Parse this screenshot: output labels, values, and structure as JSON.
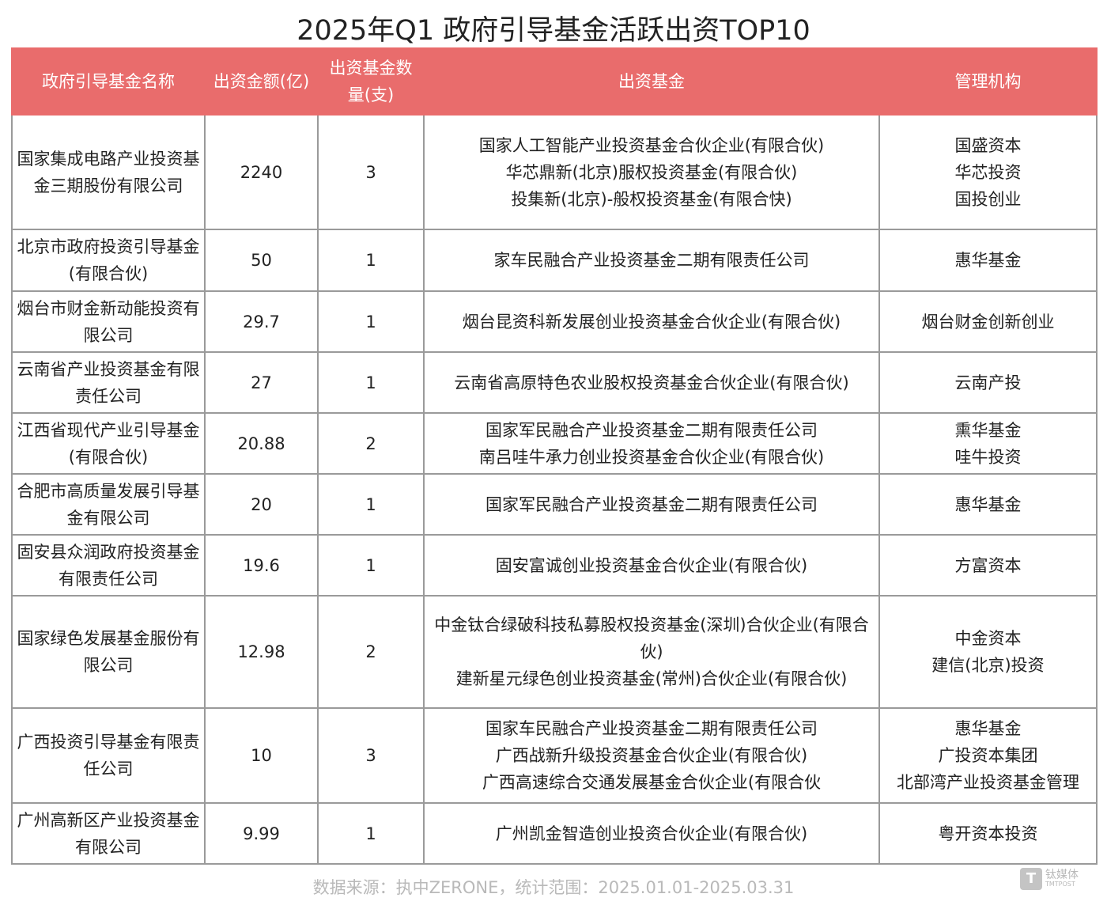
{
  "title": "2025年Q1 政府引导基金活跃出资TOP10",
  "table": {
    "header": [
      "政府引导基金名称",
      "出资金额(亿)",
      "出资基金数量(支)",
      "出资基金",
      "管理机构"
    ],
    "rows": [
      [
        "国家集成电路产业投资基金三期股份有限公司",
        2240,
        3,
        [
          "国家人工智能产业投资基金合伙企业(有限合伙)",
          "华芯鼎新(北京)服权投资基金(有限合伙)",
          "投集新(北京)-般权投资基金(有限合快)"
        ],
        [
          "国盛资本",
          "华芯投资",
          "国投创业"
        ]
      ],
      [
        "北京市政府投资引导基金(有限合伙)",
        50,
        1,
        [
          "家车民融合产业投资基金二期有限责任公司"
        ],
        [
          "惠华基金"
        ]
      ],
      [
        "烟台市财金新动能投资有限公司",
        29.7,
        1,
        [
          "烟台昆资科新发展创业投资基金合伙企业(有限合伙)"
        ],
        [
          "烟台财金创新创业"
        ]
      ],
      [
        "云南省产业投资基金有限责任公司",
        27,
        1,
        [
          "云南省高原特色农业股权投资基金合伙企业(有限合伙)"
        ],
        [
          "云南产投"
        ]
      ],
      [
        "江西省现代产业引导基金(有限合伙)",
        20.88,
        2,
        [
          "国家军民融合产业投资基金二期有限责任公司",
          "南吕哇牛承力创业投资基金合伙企业(有限合伙)"
        ],
        [
          "熏华基金",
          "哇牛投资"
        ]
      ],
      [
        "合肥市高质量发展引导基金有限公司",
        20,
        1,
        [
          "国家军民融合产业投资基金二期有限责任公司"
        ],
        [
          "惠华基金"
        ]
      ],
      [
        "固安县众润政府投资基金有限责任公司",
        19.6,
        1,
        [
          "固安富诚创业投资基金合伙企业(有限合伙)"
        ],
        [
          "方富资本"
        ]
      ],
      [
        "国家绿色发展基金服份有限公司",
        12.98,
        2,
        [
          "中金钛合绿破科技私募股权投资基金(深圳)合伙企业(有限合伙)",
          "建新星元绿色创业投资基金(常州)合伙企业(有限合伙)"
        ],
        [
          "中金资本",
          "建信(北京)投资"
        ]
      ],
      [
        "广西投资引导基金有限责任公司",
        10,
        3,
        [
          "国家车民融合产业投资基金二期有限责任公司",
          "广西战新升级投资基金合伙企业(有限合伙)",
          "广西高速综合交通发展基金合伙企业(有限合伙"
        ],
        [
          "惠华基金",
          "广投资本集团",
          "北部湾产业投资基金管理"
        ]
      ],
      [
        "广州高新区产业投资基金有限公司",
        9.99,
        1,
        [
          "广州凯金智造创业投资合伙企业(有限合伙)"
        ],
        [
          "粤开资本投资"
        ]
      ]
    ]
  },
  "footer": "数据来源：执中ZERONE，统计范围：2025.01.01-2025.03.31",
  "logo": {
    "name": "钛媒体",
    "sub": "TMTPOST"
  }
}
